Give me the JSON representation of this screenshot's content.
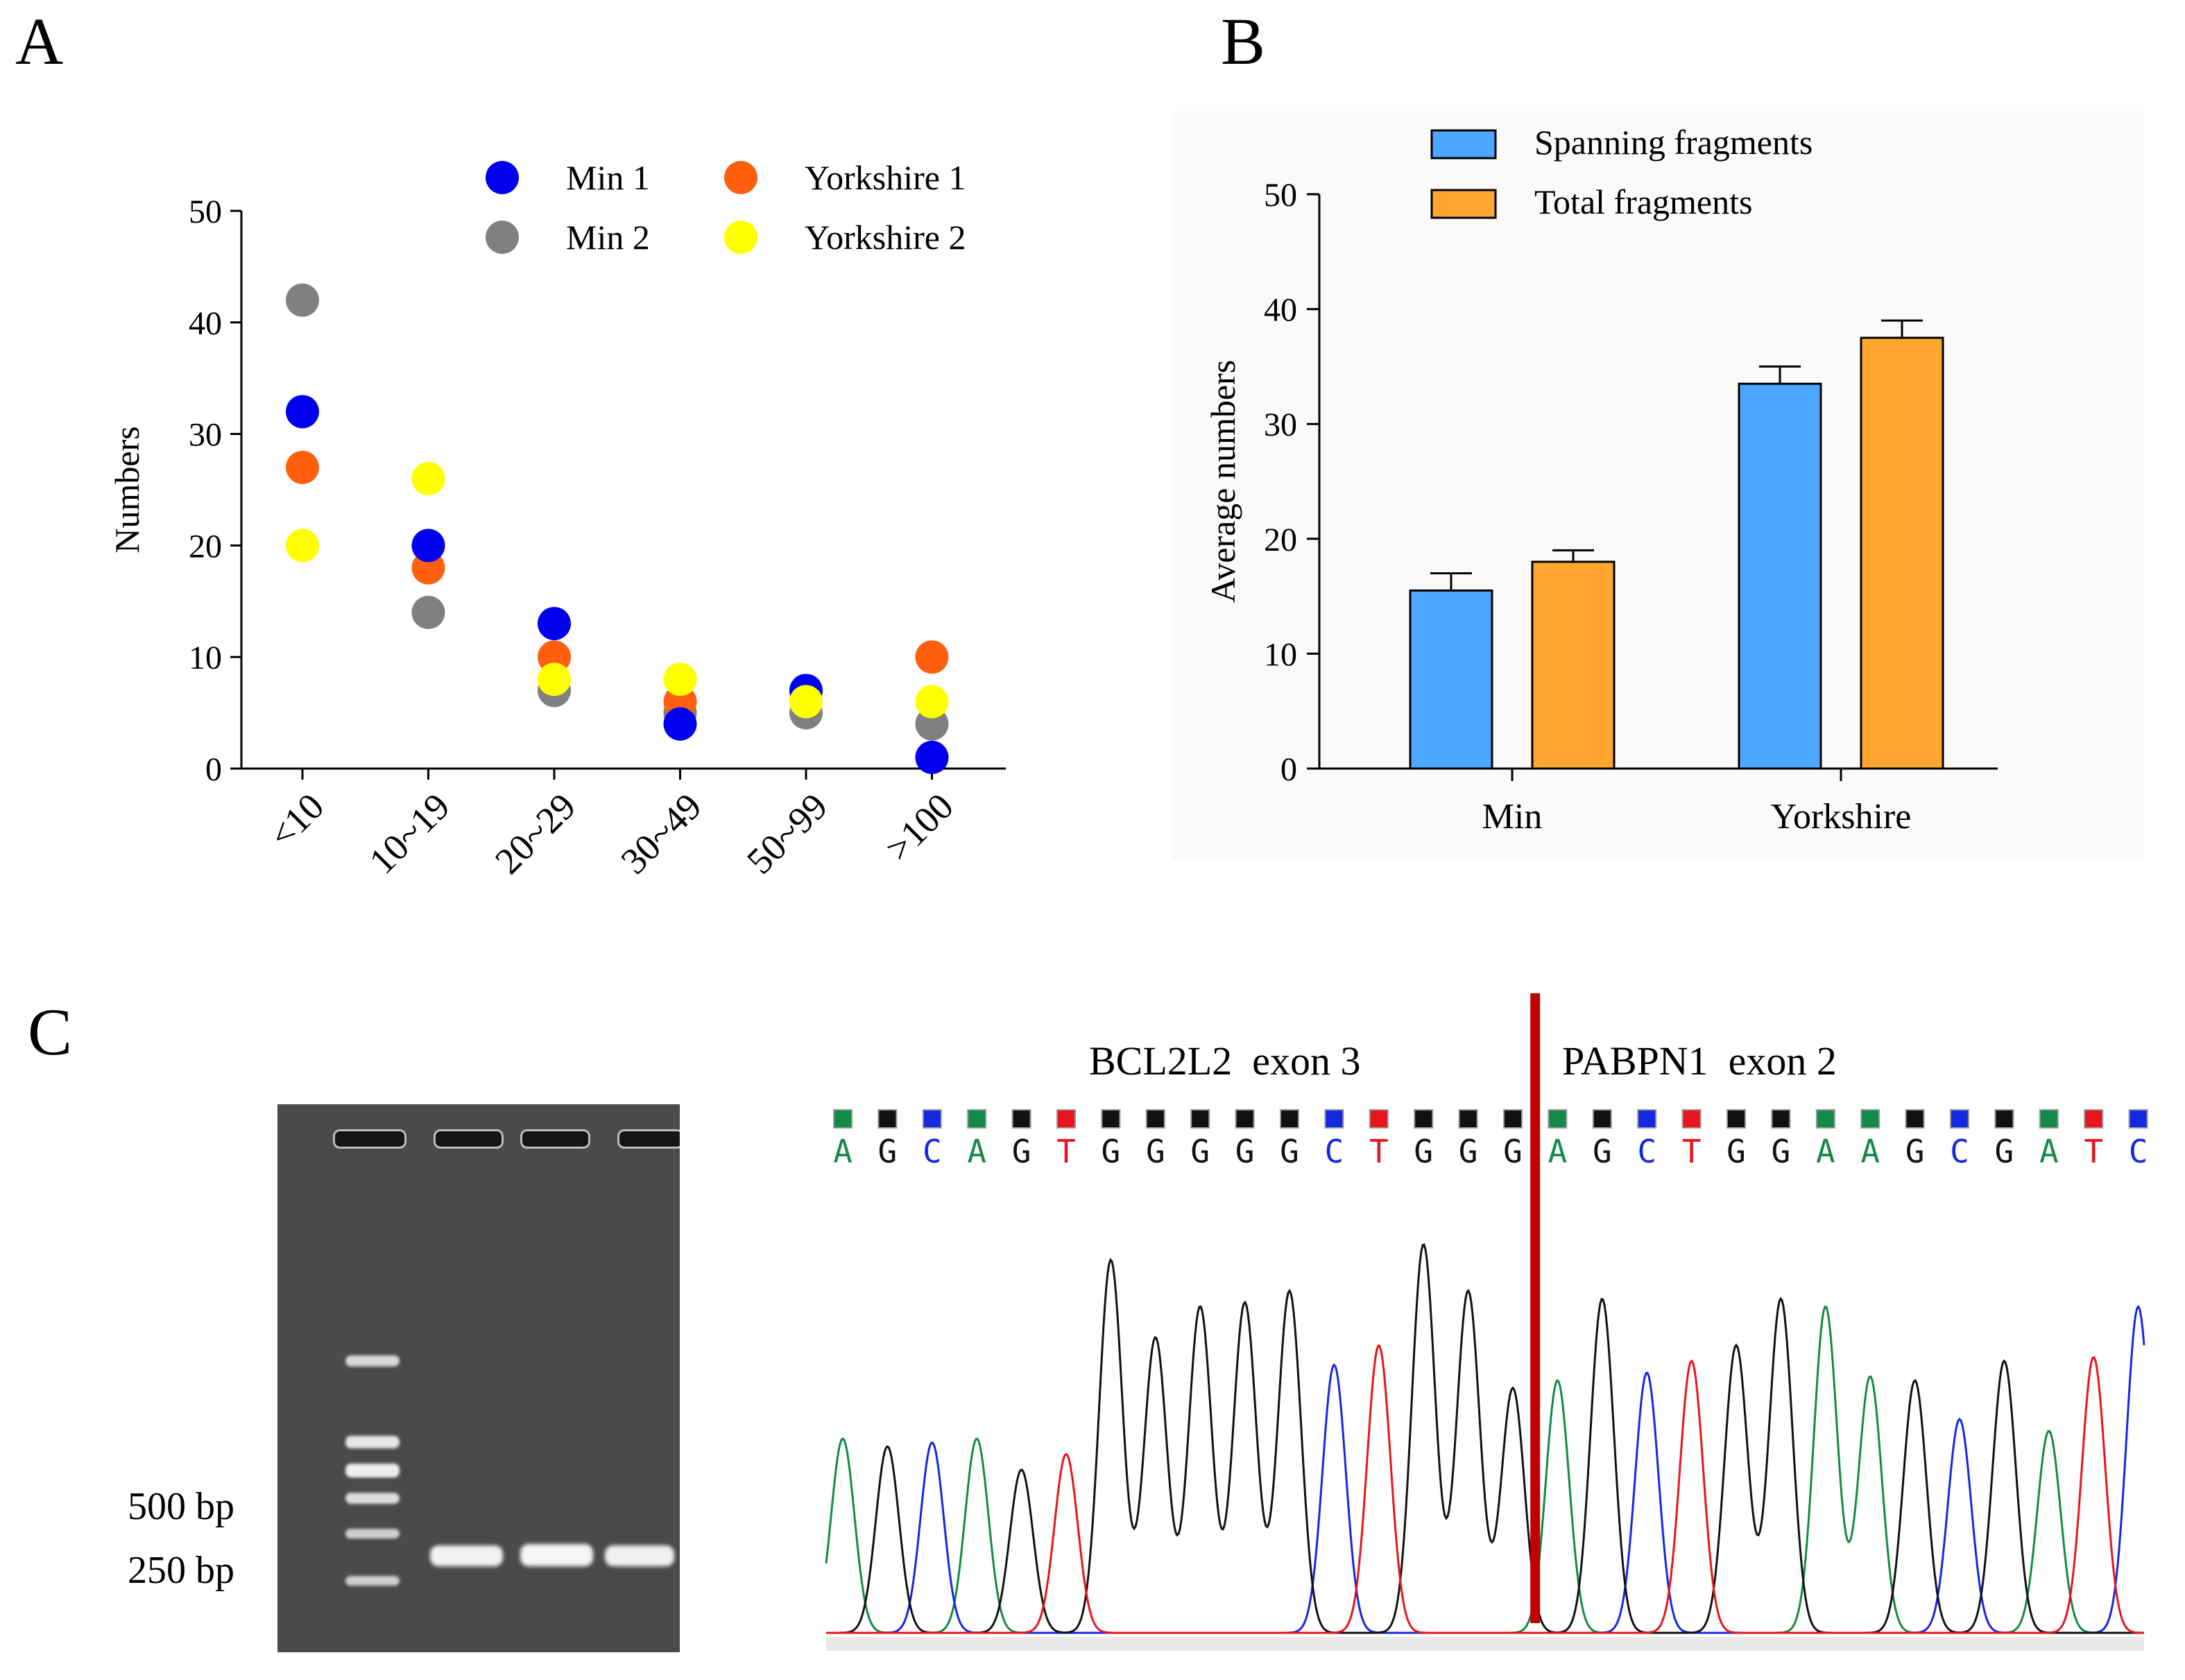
{
  "panels": {
    "a": {
      "label": "A"
    },
    "b": {
      "label": "B"
    },
    "c": {
      "label": "C"
    }
  },
  "chart_data": [
    {
      "type": "scatter",
      "panel": "A",
      "ylabel": "Numbers",
      "xlabel": "",
      "ylim": [
        0,
        50
      ],
      "yticks": [
        0,
        10,
        20,
        30,
        40,
        50
      ],
      "categories": [
        "<10",
        "10~19",
        "20~29",
        "30~49",
        "50~99",
        ">100"
      ],
      "legend_position": "top-right",
      "series": [
        {
          "name": "Min 1",
          "color": "#0000ee",
          "values": [
            32,
            20,
            13,
            4,
            7,
            1
          ]
        },
        {
          "name": "Min 2",
          "color": "#808080",
          "values": [
            42,
            14,
            7,
            5,
            5,
            4
          ]
        },
        {
          "name": "Yorkshire 1",
          "color": "#ff5f0f",
          "values": [
            27,
            18,
            10,
            6,
            6,
            10
          ]
        },
        {
          "name": "Yorkshire 2",
          "color": "#ffff00",
          "values": [
            20,
            26,
            8,
            8,
            6,
            6
          ]
        }
      ]
    },
    {
      "type": "bar",
      "panel": "B",
      "ylabel": "Average numbers",
      "xlabel": "",
      "ylim": [
        0,
        50
      ],
      "yticks": [
        0,
        10,
        20,
        30,
        40,
        50
      ],
      "categories": [
        "Min",
        "Yorkshire"
      ],
      "legend_position": "top",
      "series": [
        {
          "name": "Spanning fragments",
          "color": "#4da6ff",
          "values": [
            15.5,
            33.5
          ],
          "errors": [
            1.5,
            1.5
          ]
        },
        {
          "name": "Total fragments",
          "color": "#ffa630",
          "values": [
            18,
            37.5
          ],
          "errors": [
            1,
            1.5
          ]
        }
      ]
    }
  ],
  "gel": {
    "marker_labels": [
      "500 bp",
      "250 bp"
    ]
  },
  "chromatogram": {
    "left_label": "BCL2L2  exon 3",
    "right_label": "PABPN1  exon 2",
    "sequence": "AGCAGTGGGGGCTGGGAGCTGGAAGCGATC",
    "junction_index": 16,
    "base_colors": {
      "A": "#138a45",
      "G": "#111111",
      "C": "#1428e0",
      "T": "#e8141e"
    },
    "peak_heights": [
      0.5,
      0.48,
      0.49,
      0.5,
      0.42,
      0.46,
      0.96,
      0.76,
      0.84,
      0.85,
      0.88,
      0.69,
      0.74,
      1.0,
      0.88,
      0.63,
      0.65,
      0.86,
      0.67,
      0.7,
      0.74,
      0.86,
      0.84,
      0.66,
      0.65,
      0.55,
      0.7,
      0.52,
      0.71,
      0.84
    ]
  }
}
